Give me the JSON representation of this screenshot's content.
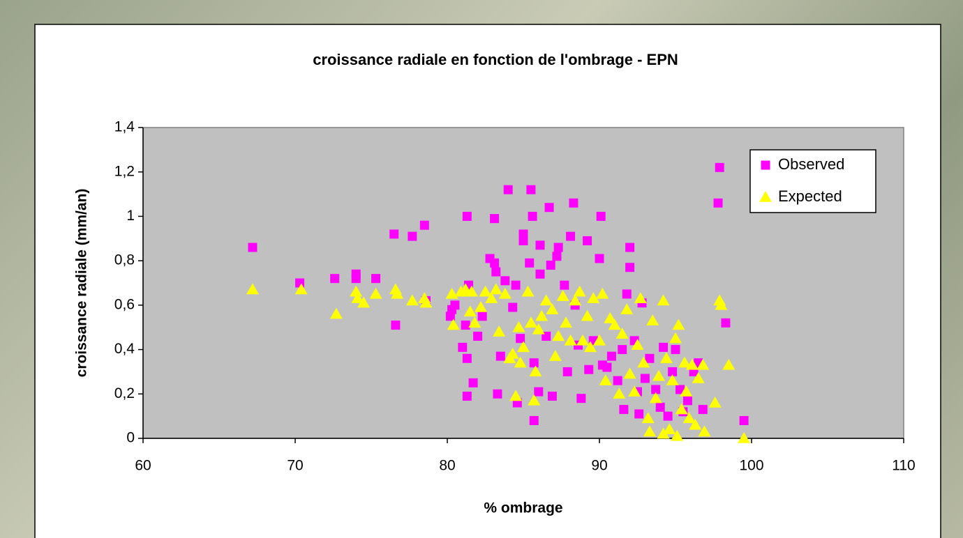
{
  "chart_data": {
    "type": "scatter",
    "title": "croissance radiale en fonction de l'ombrage - EPN",
    "xlabel": "% ombrage",
    "ylabel": "croissance radiale (mm/an)",
    "xlim": [
      60,
      110
    ],
    "xticks": [
      60,
      70,
      80,
      90,
      100,
      110
    ],
    "ylim": [
      0,
      1.4
    ],
    "yticks": [
      0,
      {
        "value": 0.2,
        "label": "0,2"
      },
      {
        "value": 0.4,
        "label": "0,4"
      },
      {
        "value": 0.6,
        "label": "0,6"
      },
      {
        "value": 0.8,
        "label": "0,8"
      },
      1,
      {
        "value": 1.2,
        "label": "1,2"
      },
      {
        "value": 1.4,
        "label": "1,4"
      }
    ],
    "grid": false,
    "legend": "upper right",
    "series": [
      {
        "name": "Observed",
        "color": "#ff00ff",
        "marker": "square",
        "x": [
          67.2,
          70.3,
          72.6,
          74.0,
          74.0,
          75.3,
          76.5,
          76.6,
          77.7,
          78.5,
          78.6,
          80.2,
          80.3,
          80.5,
          81.0,
          81.2,
          81.3,
          81.3,
          81.3,
          81.4,
          81.7,
          82.0,
          82.3,
          82.8,
          83.1,
          83.1,
          83.2,
          83.3,
          83.5,
          83.8,
          84.0,
          84.3,
          84.5,
          84.6,
          84.8,
          85.0,
          85.0,
          85.4,
          85.5,
          85.6,
          85.7,
          85.7,
          86.0,
          86.1,
          86.1,
          86.5,
          86.7,
          86.8,
          86.9,
          87.2,
          87.3,
          87.7,
          87.9,
          88.1,
          88.3,
          88.4,
          88.6,
          88.8,
          89.2,
          89.3,
          89.6,
          90.0,
          90.1,
          90.2,
          90.5,
          90.8,
          91.2,
          91.5,
          91.6,
          91.8,
          92.0,
          92.0,
          92.3,
          92.5,
          92.6,
          92.8,
          93.0,
          93.3,
          93.7,
          94.0,
          94.2,
          94.5,
          94.8,
          95.0,
          95.3,
          95.5,
          95.8,
          96.2,
          96.5,
          96.8,
          97.8,
          97.9,
          98.3,
          99.5
        ],
        "values": [
          0.86,
          0.7,
          0.72,
          0.74,
          0.72,
          0.72,
          0.92,
          0.51,
          0.91,
          0.96,
          0.62,
          0.55,
          0.58,
          0.6,
          0.41,
          0.51,
          1.0,
          0.36,
          0.19,
          0.69,
          0.25,
          0.46,
          0.55,
          0.81,
          0.99,
          0.79,
          0.75,
          0.2,
          0.37,
          0.71,
          1.12,
          0.59,
          0.69,
          0.16,
          0.45,
          0.92,
          0.89,
          0.79,
          1.12,
          1.0,
          0.34,
          0.08,
          0.21,
          0.87,
          0.74,
          0.46,
          1.04,
          0.78,
          0.19,
          0.82,
          0.86,
          0.69,
          0.3,
          0.91,
          1.06,
          0.6,
          0.42,
          0.18,
          0.89,
          0.31,
          0.44,
          0.81,
          1.0,
          0.33,
          0.32,
          0.37,
          0.26,
          0.4,
          0.13,
          0.65,
          0.86,
          0.77,
          0.44,
          0.21,
          0.11,
          0.61,
          0.27,
          0.36,
          0.22,
          0.14,
          0.41,
          0.1,
          0.3,
          0.4,
          0.22,
          0.12,
          0.17,
          0.3,
          0.34,
          0.13,
          1.06,
          1.22,
          0.52,
          0.08
        ]
      },
      {
        "name": "Expected",
        "color": "#ffff00",
        "marker": "triangle",
        "x": [
          67.2,
          70.4,
          72.7,
          74.0,
          74.1,
          74.5,
          75.3,
          76.6,
          76.7,
          77.7,
          78.5,
          78.6,
          80.3,
          80.4,
          80.9,
          81.2,
          81.5,
          81.6,
          81.8,
          82.2,
          82.5,
          82.9,
          83.2,
          83.4,
          83.8,
          84.1,
          84.3,
          84.5,
          84.7,
          84.8,
          85.0,
          85.3,
          85.5,
          85.7,
          85.8,
          86.0,
          86.2,
          86.5,
          86.9,
          87.1,
          87.3,
          87.6,
          87.8,
          88.1,
          88.4,
          88.7,
          88.9,
          89.2,
          89.4,
          89.6,
          90.0,
          90.2,
          90.4,
          90.7,
          91.0,
          91.3,
          91.5,
          91.8,
          92.0,
          92.3,
          92.5,
          92.7,
          92.9,
          93.2,
          93.3,
          93.5,
          93.7,
          93.9,
          94.2,
          94.2,
          94.4,
          94.6,
          94.8,
          95.0,
          95.1,
          95.2,
          95.4,
          95.6,
          95.7,
          95.9,
          96.1,
          96.3,
          96.5,
          96.8,
          96.9,
          97.6,
          97.9,
          98.0,
          98.5,
          99.5
        ],
        "values": [
          0.67,
          0.67,
          0.56,
          0.66,
          0.63,
          0.61,
          0.65,
          0.67,
          0.65,
          0.62,
          0.63,
          0.61,
          0.65,
          0.51,
          0.66,
          0.67,
          0.57,
          0.66,
          0.52,
          0.59,
          0.66,
          0.63,
          0.67,
          0.48,
          0.65,
          0.36,
          0.38,
          0.19,
          0.5,
          0.34,
          0.41,
          0.66,
          0.52,
          0.17,
          0.3,
          0.49,
          0.55,
          0.62,
          0.58,
          0.37,
          0.46,
          0.64,
          0.52,
          0.44,
          0.62,
          0.66,
          0.44,
          0.55,
          0.41,
          0.63,
          0.44,
          0.65,
          0.26,
          0.54,
          0.51,
          0.2,
          0.47,
          0.58,
          0.29,
          0.21,
          0.42,
          0.63,
          0.34,
          0.09,
          0.03,
          0.53,
          0.18,
          0.28,
          0.62,
          0.02,
          0.36,
          0.04,
          0.26,
          0.45,
          0.01,
          0.51,
          0.13,
          0.34,
          0.21,
          0.09,
          0.33,
          0.06,
          0.27,
          0.33,
          0.03,
          0.16,
          0.62,
          0.6,
          0.33,
          0.0
        ]
      }
    ]
  }
}
